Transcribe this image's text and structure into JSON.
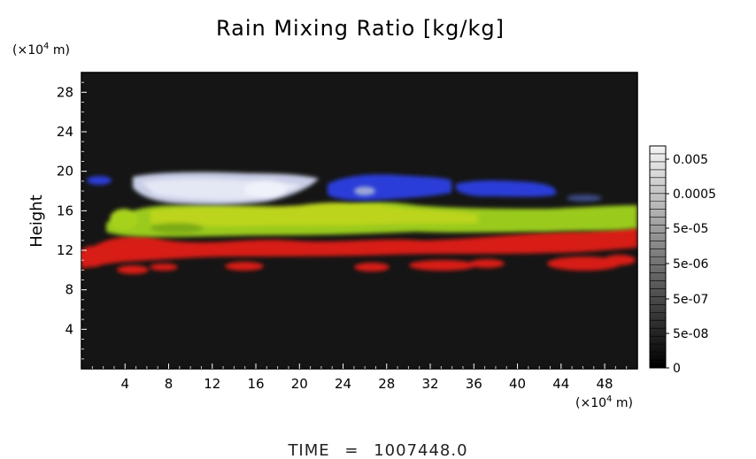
{
  "chart_data": {
    "type": "heatmap",
    "title": "Rain Mixing Ratio [kg/kg]",
    "xlabel": "",
    "ylabel": "Height",
    "x_unit_label": "(×10",
    "x_unit_exp": "4",
    "x_unit_suffix": " m)",
    "y_unit_label": "(×10",
    "y_unit_exp": "4",
    "y_unit_suffix": " m)",
    "xlim": [
      0,
      51
    ],
    "ylim": [
      0,
      30
    ],
    "x_ticks": [
      4,
      8,
      12,
      16,
      20,
      24,
      28,
      32,
      36,
      40,
      44,
      48
    ],
    "x_tick_labels": [
      "4",
      "8",
      "12",
      "16",
      "20",
      "24",
      "28",
      "32",
      "36",
      "40",
      "44",
      "48"
    ],
    "y_ticks": [
      4,
      8,
      12,
      16,
      20,
      24,
      28
    ],
    "y_tick_labels": [
      "4",
      "8",
      "12",
      "16",
      "20",
      "24",
      "28"
    ],
    "colorbar": {
      "labels": [
        "0.005",
        "0.0005",
        "5e-05",
        "5e-06",
        "5e-07",
        "5e-08",
        "0"
      ],
      "gradient_top": "#f0f0f0",
      "gradient_bottom": "#000000"
    },
    "background_color": "#151515",
    "layers": [
      {
        "name": "blue",
        "color": "#2a3fd6",
        "y_range": [
          17.5,
          20
        ]
      },
      {
        "name": "white",
        "color": "#d0d6ee",
        "y_range": [
          16.5,
          20
        ]
      },
      {
        "name": "yellow-green",
        "color": "#9acb1e",
        "y_range": [
          14,
          17.5
        ]
      },
      {
        "name": "red",
        "color": "#e01818",
        "y_range": [
          9.5,
          14
        ]
      }
    ]
  },
  "footer": {
    "time_label": "TIME",
    "time_eq": "=",
    "time_value": "1007448.0"
  }
}
